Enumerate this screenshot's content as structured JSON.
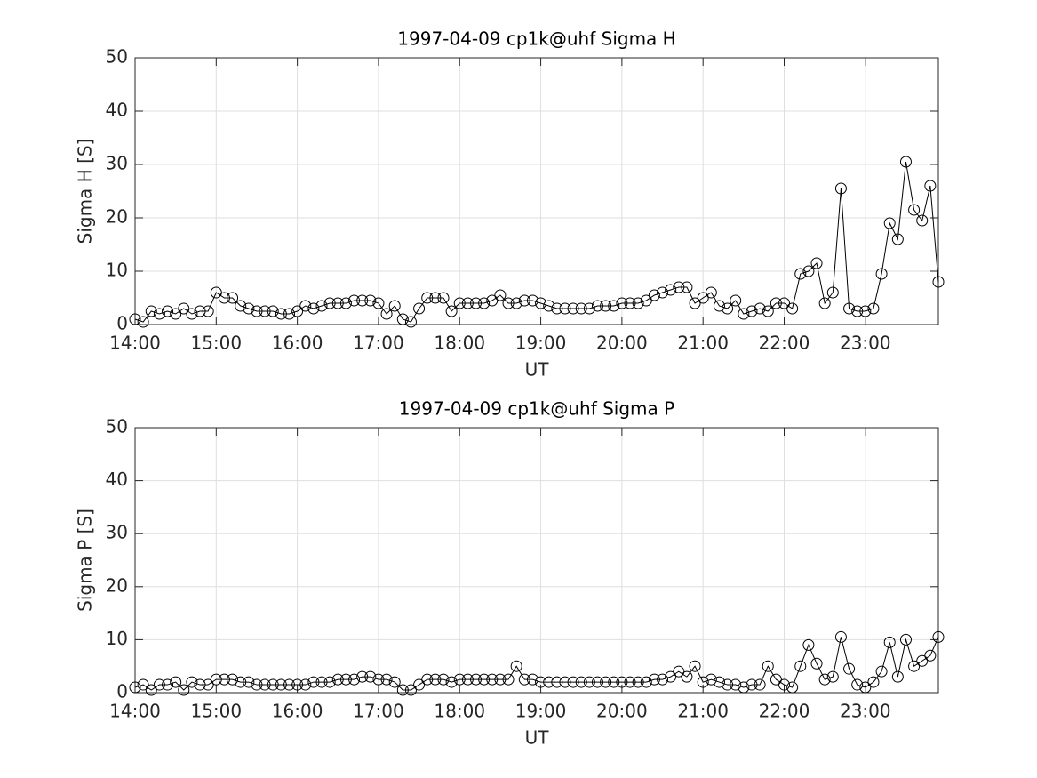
{
  "chart_data": [
    {
      "type": "line",
      "title": "1997-04-09  cp1k@uhf Sigma H",
      "xlabel": "UT",
      "ylabel": "Sigma H [S]",
      "x": [
        14.0,
        14.1,
        14.2,
        14.3,
        14.4,
        14.5,
        14.6,
        14.7,
        14.8,
        14.9,
        15.0,
        15.1,
        15.2,
        15.3,
        15.4,
        15.5,
        15.6,
        15.7,
        15.8,
        15.9,
        16.0,
        16.1,
        16.2,
        16.3,
        16.4,
        16.5,
        16.6,
        16.7,
        16.8,
        16.9,
        17.0,
        17.1,
        17.2,
        17.3,
        17.4,
        17.5,
        17.6,
        17.7,
        17.8,
        17.9,
        18.0,
        18.1,
        18.2,
        18.3,
        18.4,
        18.5,
        18.6,
        18.7,
        18.8,
        18.9,
        19.0,
        19.1,
        19.2,
        19.3,
        19.4,
        19.5,
        19.6,
        19.7,
        19.8,
        19.9,
        20.0,
        20.1,
        20.2,
        20.3,
        20.4,
        20.5,
        20.6,
        20.7,
        20.8,
        20.9,
        21.0,
        21.1,
        21.2,
        21.3,
        21.4,
        21.5,
        21.6,
        21.7,
        21.8,
        21.9,
        22.0,
        22.1,
        22.2,
        22.3,
        22.4,
        22.5,
        22.6,
        22.7,
        22.8,
        22.9,
        23.0,
        23.1,
        23.2,
        23.3,
        23.4,
        23.5,
        23.6,
        23.7,
        23.8,
        23.9
      ],
      "series": [
        {
          "color": "#000000",
          "marker": "circle",
          "values": [
            1,
            0.5,
            2.5,
            2,
            2.5,
            2,
            3,
            2,
            2.5,
            2.5,
            6,
            5,
            5,
            3.5,
            3,
            2.5,
            2.5,
            2.5,
            2,
            2,
            2.5,
            3.5,
            3,
            3.5,
            4,
            4,
            4,
            4.5,
            4.5,
            4.5,
            4,
            2,
            3.5,
            1,
            0.5,
            3,
            5,
            5,
            5,
            2.5,
            4,
            4,
            4,
            4,
            4.5,
            5.5,
            4,
            4,
            4.5,
            4.5,
            4,
            3.5,
            3,
            3,
            3,
            3,
            3,
            3.5,
            3.5,
            3.5,
            4,
            4,
            4,
            4.5,
            5.5,
            6,
            6.5,
            7,
            7,
            4,
            5,
            6,
            3.5,
            3,
            4.5,
            2,
            2.5,
            3,
            2.5,
            4,
            4,
            3,
            9.5,
            10,
            11.5,
            4,
            6,
            25.5,
            3,
            2.5,
            2.5,
            3,
            9.5,
            19,
            16,
            30.5,
            21.5,
            19.5,
            26,
            8
          ]
        }
      ],
      "xlim": [
        14,
        23.9
      ],
      "ylim": [
        0,
        50
      ],
      "yticks": [
        0,
        10,
        20,
        30,
        40,
        50
      ],
      "xticks": [
        {
          "value": 14,
          "label": "14:00"
        },
        {
          "value": 15,
          "label": "15:00"
        },
        {
          "value": 16,
          "label": "16:00"
        },
        {
          "value": 17,
          "label": "17:00"
        },
        {
          "value": 18,
          "label": "18:00"
        },
        {
          "value": 19,
          "label": "19:00"
        },
        {
          "value": 20,
          "label": "20:00"
        },
        {
          "value": 21,
          "label": "21:00"
        },
        {
          "value": 22,
          "label": "22:00"
        },
        {
          "value": 23,
          "label": "23:00"
        }
      ],
      "grid": true
    },
    {
      "type": "line",
      "title": "1997-04-09  cp1k@uhf Sigma P",
      "xlabel": "UT",
      "ylabel": "Sigma P [S]",
      "x": [
        14.0,
        14.1,
        14.2,
        14.3,
        14.4,
        14.5,
        14.6,
        14.7,
        14.8,
        14.9,
        15.0,
        15.1,
        15.2,
        15.3,
        15.4,
        15.5,
        15.6,
        15.7,
        15.8,
        15.9,
        16.0,
        16.1,
        16.2,
        16.3,
        16.4,
        16.5,
        16.6,
        16.7,
        16.8,
        16.9,
        17.0,
        17.1,
        17.2,
        17.3,
        17.4,
        17.5,
        17.6,
        17.7,
        17.8,
        17.9,
        18.0,
        18.1,
        18.2,
        18.3,
        18.4,
        18.5,
        18.6,
        18.7,
        18.8,
        18.9,
        19.0,
        19.1,
        19.2,
        19.3,
        19.4,
        19.5,
        19.6,
        19.7,
        19.8,
        19.9,
        20.0,
        20.1,
        20.2,
        20.3,
        20.4,
        20.5,
        20.6,
        20.7,
        20.8,
        20.9,
        21.0,
        21.1,
        21.2,
        21.3,
        21.4,
        21.5,
        21.6,
        21.7,
        21.8,
        21.9,
        22.0,
        22.1,
        22.2,
        22.3,
        22.4,
        22.5,
        22.6,
        22.7,
        22.8,
        22.9,
        23.0,
        23.1,
        23.2,
        23.3,
        23.4,
        23.5,
        23.6,
        23.7,
        23.8,
        23.9
      ],
      "series": [
        {
          "color": "#000000",
          "marker": "circle",
          "values": [
            1,
            1.5,
            0.5,
            1.5,
            1.5,
            2,
            0.5,
            2,
            1.5,
            1.5,
            2.5,
            2.5,
            2.5,
            2,
            2,
            1.5,
            1.5,
            1.5,
            1.5,
            1.5,
            1.5,
            1.5,
            2,
            2,
            2,
            2.5,
            2.5,
            2.5,
            3,
            3,
            2.5,
            2.5,
            2,
            0.5,
            0.5,
            1.5,
            2.5,
            2.5,
            2.5,
            2,
            2.5,
            2.5,
            2.5,
            2.5,
            2.5,
            2.5,
            2.5,
            5,
            2.5,
            2.5,
            2,
            2,
            2,
            2,
            2,
            2,
            2,
            2,
            2,
            2,
            2,
            2,
            2,
            2,
            2.5,
            2.5,
            3,
            4,
            3,
            5,
            2,
            2.5,
            2,
            1.5,
            1.5,
            1,
            1.5,
            1.5,
            5,
            2.5,
            1.5,
            1,
            5,
            9,
            5.5,
            2.5,
            3,
            10.5,
            4.5,
            1.5,
            1,
            2,
            4,
            9.5,
            3,
            10,
            5,
            6,
            7,
            10.5
          ]
        }
      ],
      "xlim": [
        14,
        23.9
      ],
      "ylim": [
        0,
        50
      ],
      "yticks": [
        0,
        10,
        20,
        30,
        40,
        50
      ],
      "xticks": [
        {
          "value": 14,
          "label": "14:00"
        },
        {
          "value": 15,
          "label": "15:00"
        },
        {
          "value": 16,
          "label": "16:00"
        },
        {
          "value": 17,
          "label": "17:00"
        },
        {
          "value": 18,
          "label": "18:00"
        },
        {
          "value": 19,
          "label": "19:00"
        },
        {
          "value": 20,
          "label": "20:00"
        },
        {
          "value": 21,
          "label": "21:00"
        },
        {
          "value": 22,
          "label": "22:00"
        },
        {
          "value": 23,
          "label": "23:00"
        }
      ],
      "grid": true
    }
  ]
}
